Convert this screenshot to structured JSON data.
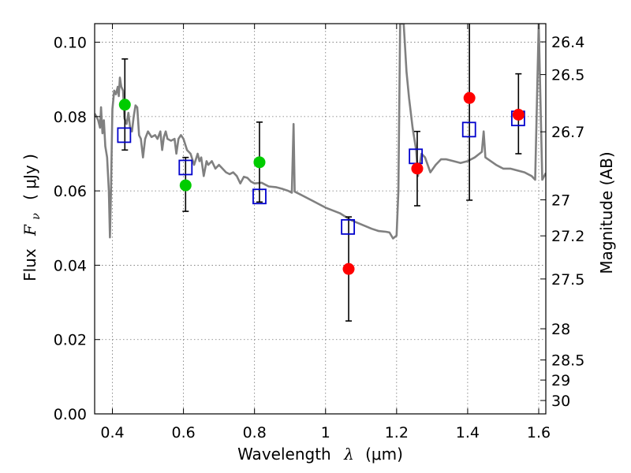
{
  "chart_data": {
    "type": "scatter",
    "xlabel_text": "Wavelength",
    "xlabel_symbol": "λ",
    "xlabel_unit": "(μm)",
    "ylabel_text": "Flux",
    "ylabel_symbol": "F",
    "ylabel_subscript": "ν",
    "ylabel_unit": "( μJy )",
    "y2label": "Magnitude (AB)",
    "xlim": [
      0.35,
      1.62
    ],
    "ylim": [
      0.0,
      0.105
    ],
    "grid": true,
    "x_ticks": [
      {
        "value": 0.4,
        "label": "0.4"
      },
      {
        "value": 0.6,
        "label": "0.6"
      },
      {
        "value": 0.8,
        "label": "0.8"
      },
      {
        "value": 1.0,
        "label": "1"
      },
      {
        "value": 1.2,
        "label": "1.2"
      },
      {
        "value": 1.4,
        "label": "1.4"
      },
      {
        "value": 1.6,
        "label": "1.6"
      }
    ],
    "y_ticks": [
      {
        "value": 0.0,
        "label": "0.00"
      },
      {
        "value": 0.02,
        "label": "0.02"
      },
      {
        "value": 0.04,
        "label": "0.04"
      },
      {
        "value": 0.06,
        "label": "0.06"
      },
      {
        "value": 0.08,
        "label": "0.08"
      },
      {
        "value": 0.1,
        "label": "0.10"
      }
    ],
    "y2_ticks": [
      {
        "label": "26.4",
        "flux": 0.1001
      },
      {
        "label": "26.5",
        "flux": 0.0913
      },
      {
        "label": "26.7",
        "flux": 0.0759
      },
      {
        "label": "27",
        "flux": 0.0576
      },
      {
        "label": "27.2",
        "flux": 0.0479
      },
      {
        "label": "27.5",
        "flux": 0.0363
      },
      {
        "label": "28",
        "flux": 0.0229
      },
      {
        "label": "28.5",
        "flux": 0.0145
      },
      {
        "label": "29",
        "flux": 0.0091
      },
      {
        "label": "30",
        "flux": 0.0036
      }
    ],
    "model_sed": {
      "color": "#808080",
      "points": [
        [
          0.35,
          0.0808
        ],
        [
          0.355,
          0.08
        ],
        [
          0.36,
          0.079
        ],
        [
          0.365,
          0.077
        ],
        [
          0.368,
          0.0825
        ],
        [
          0.372,
          0.0755
        ],
        [
          0.376,
          0.079
        ],
        [
          0.38,
          0.072
        ],
        [
          0.385,
          0.069
        ],
        [
          0.39,
          0.06
        ],
        [
          0.393,
          0.0475
        ],
        [
          0.396,
          0.06
        ],
        [
          0.4,
          0.082
        ],
        [
          0.405,
          0.087
        ],
        [
          0.41,
          0.086
        ],
        [
          0.415,
          0.088
        ],
        [
          0.418,
          0.0855
        ],
        [
          0.421,
          0.0905
        ],
        [
          0.425,
          0.088
        ],
        [
          0.43,
          0.087
        ],
        [
          0.434,
          0.0795
        ],
        [
          0.44,
          0.078
        ],
        [
          0.445,
          0.081
        ],
        [
          0.45,
          0.077
        ],
        [
          0.455,
          0.076
        ],
        [
          0.46,
          0.08
        ],
        [
          0.465,
          0.083
        ],
        [
          0.47,
          0.0825
        ],
        [
          0.475,
          0.075
        ],
        [
          0.48,
          0.074
        ],
        [
          0.486,
          0.069
        ],
        [
          0.492,
          0.074
        ],
        [
          0.5,
          0.076
        ],
        [
          0.51,
          0.0745
        ],
        [
          0.52,
          0.075
        ],
        [
          0.527,
          0.074
        ],
        [
          0.535,
          0.076
        ],
        [
          0.54,
          0.071
        ],
        [
          0.545,
          0.0745
        ],
        [
          0.55,
          0.076
        ],
        [
          0.555,
          0.074
        ],
        [
          0.565,
          0.0735
        ],
        [
          0.575,
          0.074
        ],
        [
          0.58,
          0.07
        ],
        [
          0.586,
          0.074
        ],
        [
          0.593,
          0.075
        ],
        [
          0.6,
          0.074
        ],
        [
          0.61,
          0.071
        ],
        [
          0.62,
          0.07
        ],
        [
          0.63,
          0.067
        ],
        [
          0.64,
          0.07
        ],
        [
          0.645,
          0.068
        ],
        [
          0.65,
          0.069
        ],
        [
          0.657,
          0.064
        ],
        [
          0.665,
          0.068
        ],
        [
          0.67,
          0.067
        ],
        [
          0.68,
          0.068
        ],
        [
          0.69,
          0.066
        ],
        [
          0.7,
          0.067
        ],
        [
          0.71,
          0.066
        ],
        [
          0.72,
          0.065
        ],
        [
          0.73,
          0.0645
        ],
        [
          0.74,
          0.065
        ],
        [
          0.75,
          0.064
        ],
        [
          0.76,
          0.062
        ],
        [
          0.77,
          0.0638
        ],
        [
          0.78,
          0.0635
        ],
        [
          0.79,
          0.0625
        ],
        [
          0.8,
          0.062
        ],
        [
          0.82,
          0.0622
        ],
        [
          0.84,
          0.0612
        ],
        [
          0.86,
          0.061
        ],
        [
          0.88,
          0.0605
        ],
        [
          0.895,
          0.06
        ],
        [
          0.905,
          0.0595
        ],
        [
          0.91,
          0.078
        ],
        [
          0.913,
          0.0598
        ],
        [
          0.93,
          0.059
        ],
        [
          0.96,
          0.0575
        ],
        [
          1.0,
          0.0555
        ],
        [
          1.04,
          0.054
        ],
        [
          1.07,
          0.0522
        ],
        [
          1.1,
          0.051
        ],
        [
          1.13,
          0.0498
        ],
        [
          1.15,
          0.0492
        ],
        [
          1.17,
          0.049
        ],
        [
          1.18,
          0.0488
        ],
        [
          1.19,
          0.0472
        ],
        [
          1.2,
          0.048
        ],
        [
          1.205,
          0.06
        ],
        [
          1.21,
          0.105
        ],
        [
          1.22,
          0.105
        ],
        [
          1.228,
          0.092
        ],
        [
          1.235,
          0.085
        ],
        [
          1.245,
          0.077
        ],
        [
          1.255,
          0.071
        ],
        [
          1.26,
          0.064
        ],
        [
          1.27,
          0.07
        ],
        [
          1.28,
          0.069
        ],
        [
          1.295,
          0.065
        ],
        [
          1.31,
          0.067
        ],
        [
          1.325,
          0.0685
        ],
        [
          1.34,
          0.0685
        ],
        [
          1.36,
          0.068
        ],
        [
          1.38,
          0.0675
        ],
        [
          1.4,
          0.068
        ],
        [
          1.42,
          0.069
        ],
        [
          1.44,
          0.0705
        ],
        [
          1.445,
          0.076
        ],
        [
          1.45,
          0.069
        ],
        [
          1.48,
          0.067
        ],
        [
          1.5,
          0.066
        ],
        [
          1.52,
          0.066
        ],
        [
          1.54,
          0.0655
        ],
        [
          1.56,
          0.065
        ],
        [
          1.58,
          0.064
        ],
        [
          1.59,
          0.063
        ],
        [
          1.6,
          0.105
        ],
        [
          1.61,
          0.063
        ],
        [
          1.62,
          0.0648
        ]
      ]
    },
    "model_photometry": {
      "marker": "open-square",
      "color": "#0000cc",
      "points": [
        {
          "x": 0.433,
          "y": 0.075
        },
        {
          "x": 0.606,
          "y": 0.0663
        },
        {
          "x": 0.814,
          "y": 0.0585
        },
        {
          "x": 1.063,
          "y": 0.0503
        },
        {
          "x": 1.254,
          "y": 0.0693
        },
        {
          "x": 1.404,
          "y": 0.0765
        },
        {
          "x": 1.542,
          "y": 0.0795
        }
      ]
    },
    "observed_hst_optical": {
      "marker": "filled-circle",
      "color": "#00cc00",
      "points": [
        {
          "x": 0.435,
          "y": 0.0832,
          "yerr_low": 0.071,
          "yerr_high": 0.0955
        },
        {
          "x": 0.606,
          "y": 0.0615,
          "yerr_low": 0.0545,
          "yerr_high": 0.069
        },
        {
          "x": 0.814,
          "y": 0.0677,
          "yerr_low": 0.057,
          "yerr_high": 0.0785
        }
      ]
    },
    "observed_hst_ir": {
      "marker": "filled-circle",
      "color": "#ff0000",
      "points": [
        {
          "x": 1.065,
          "y": 0.039,
          "yerr_low": 0.025,
          "yerr_high": 0.053
        },
        {
          "x": 1.258,
          "y": 0.066,
          "yerr_low": 0.056,
          "yerr_high": 0.076
        },
        {
          "x": 1.405,
          "y": 0.085,
          "yerr_low": 0.0575,
          "yerr_high": 0.105
        },
        {
          "x": 1.543,
          "y": 0.0805,
          "yerr_low": 0.07,
          "yerr_high": 0.0915
        }
      ]
    }
  }
}
